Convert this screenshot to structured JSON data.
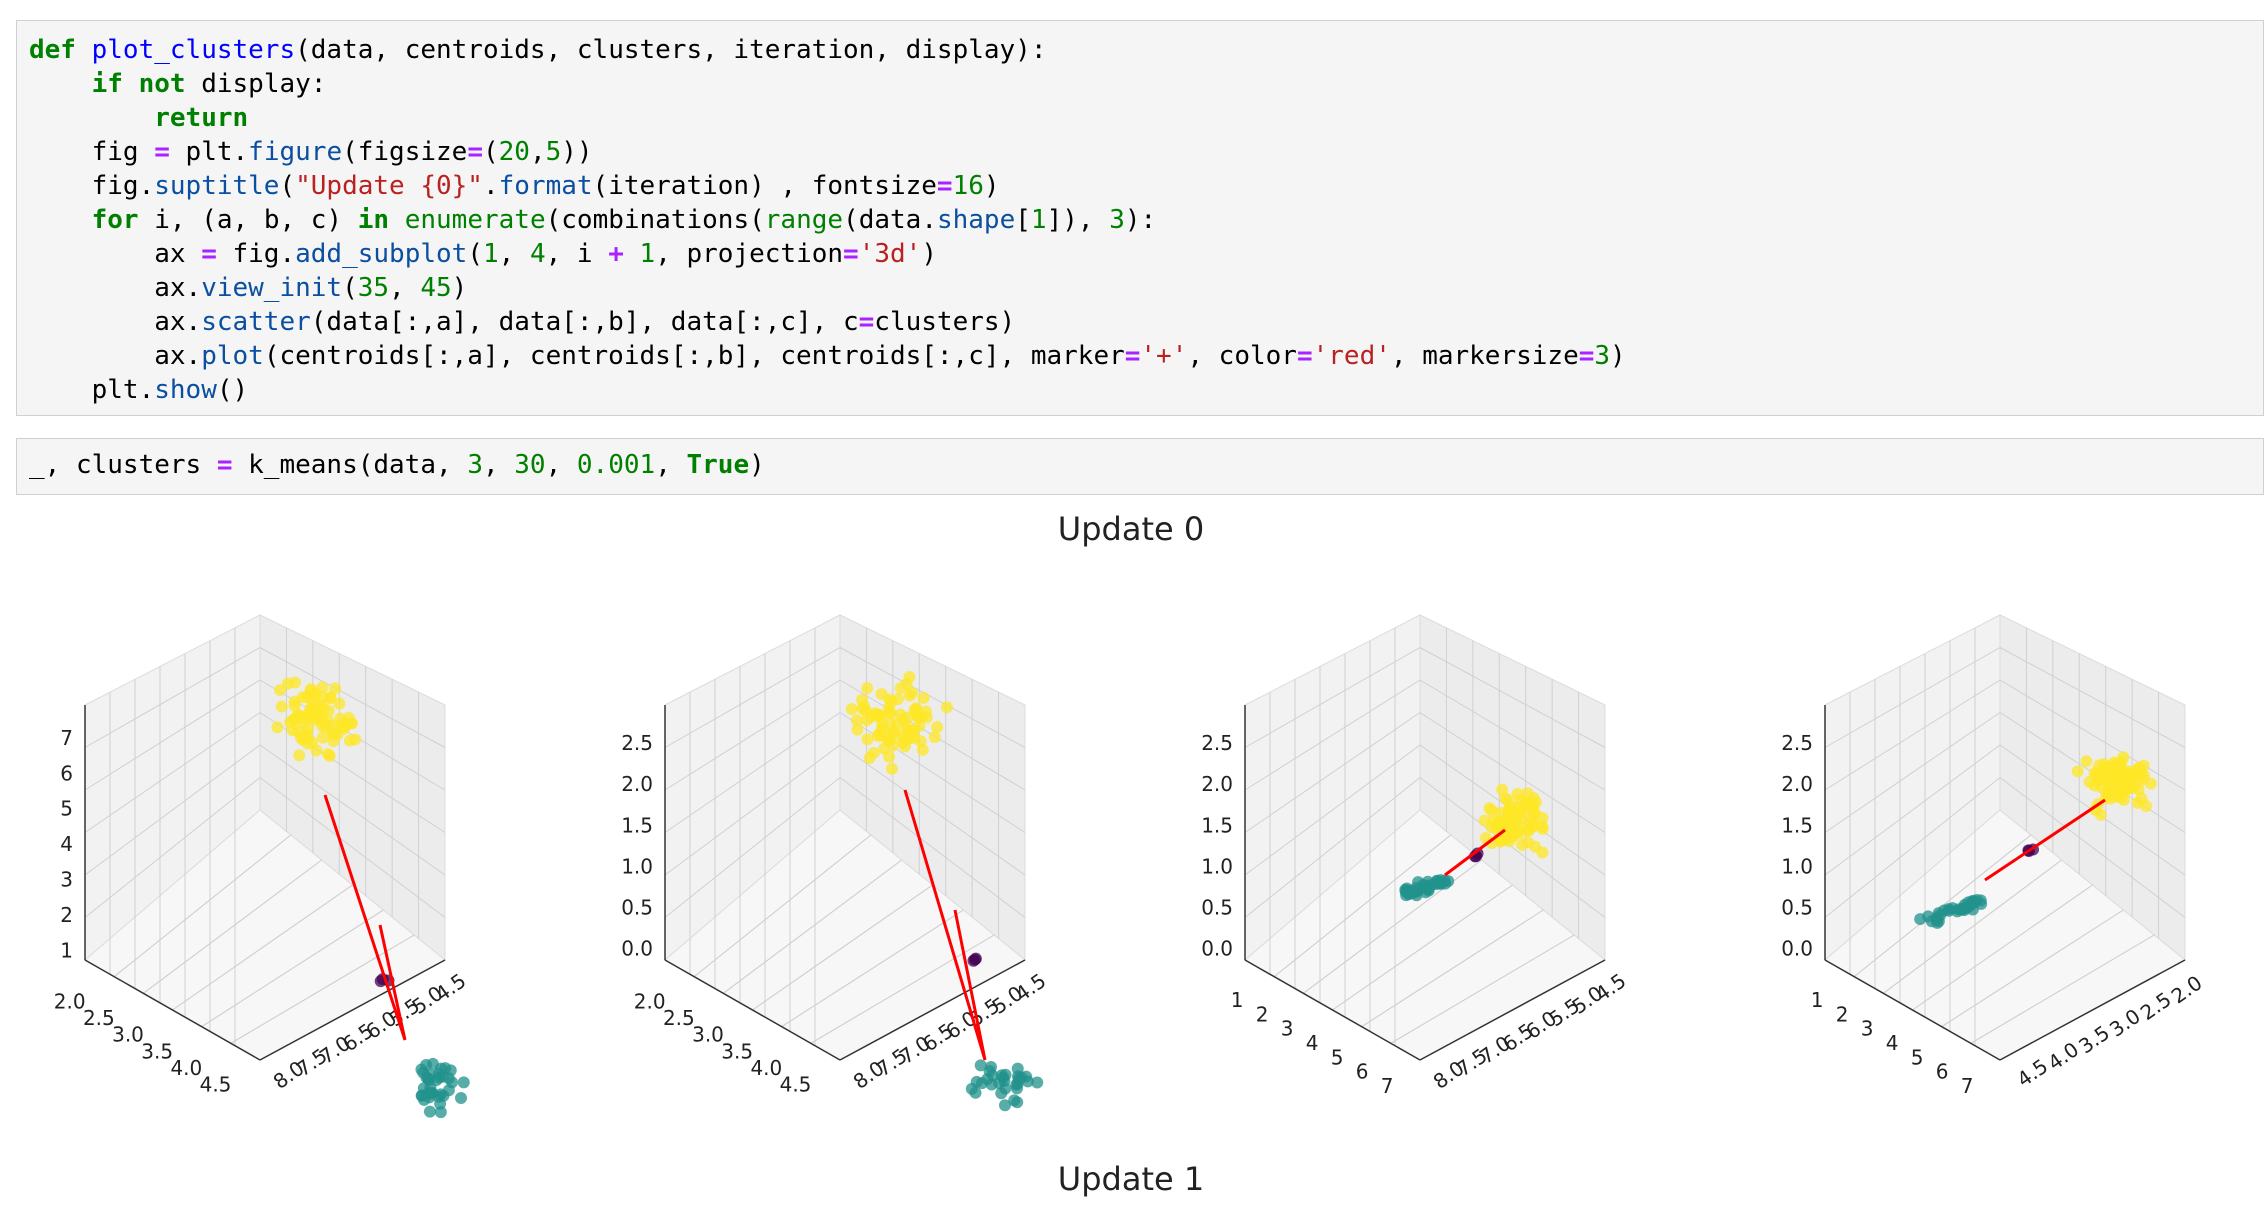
{
  "code_cell_1": {
    "lines": [
      [
        [
          "k",
          "def"
        ],
        [
          "t",
          " "
        ],
        [
          "f",
          "plot_clusters"
        ],
        [
          "t",
          "(data, centroids, clusters, iteration, display):"
        ]
      ],
      [
        [
          "t",
          "    "
        ],
        [
          "k",
          "if"
        ],
        [
          "t",
          " "
        ],
        [
          "k",
          "not"
        ],
        [
          "t",
          " display:"
        ]
      ],
      [
        [
          "t",
          "        "
        ],
        [
          "k",
          "return"
        ]
      ],
      [
        [
          "t",
          "    fig "
        ],
        [
          "o",
          "="
        ],
        [
          "t",
          " plt."
        ],
        [
          "a",
          "figure"
        ],
        [
          "t",
          "(figsize"
        ],
        [
          "o",
          "="
        ],
        [
          "t",
          "("
        ],
        [
          "n",
          "20"
        ],
        [
          "t",
          ","
        ],
        [
          "n",
          "5"
        ],
        [
          "t",
          "))"
        ]
      ],
      [
        [
          "t",
          "    fig."
        ],
        [
          "a",
          "suptitle"
        ],
        [
          "t",
          "("
        ],
        [
          "s",
          "\"Update {0}\""
        ],
        [
          "t",
          "."
        ],
        [
          "a",
          "format"
        ],
        [
          "t",
          "(iteration) , fontsize"
        ],
        [
          "o",
          "="
        ],
        [
          "n",
          "16"
        ],
        [
          "t",
          ")"
        ]
      ],
      [
        [
          "t",
          "    "
        ],
        [
          "k",
          "for"
        ],
        [
          "t",
          " i, (a, b, c) "
        ],
        [
          "k",
          "in"
        ],
        [
          "t",
          " "
        ],
        [
          "b",
          "enumerate"
        ],
        [
          "t",
          "(combinations("
        ],
        [
          "b",
          "range"
        ],
        [
          "t",
          "(data."
        ],
        [
          "a",
          "shape"
        ],
        [
          "t",
          "["
        ],
        [
          "n",
          "1"
        ],
        [
          "t",
          "]), "
        ],
        [
          "n",
          "3"
        ],
        [
          "t",
          "):"
        ]
      ],
      [
        [
          "t",
          "        ax "
        ],
        [
          "o",
          "="
        ],
        [
          "t",
          " fig."
        ],
        [
          "a",
          "add_subplot"
        ],
        [
          "t",
          "("
        ],
        [
          "n",
          "1"
        ],
        [
          "t",
          ", "
        ],
        [
          "n",
          "4"
        ],
        [
          "t",
          ", i "
        ],
        [
          "o",
          "+"
        ],
        [
          "t",
          " "
        ],
        [
          "n",
          "1"
        ],
        [
          "t",
          ", projection"
        ],
        [
          "o",
          "="
        ],
        [
          "s",
          "'3d'"
        ],
        [
          "t",
          ")"
        ]
      ],
      [
        [
          "t",
          "        ax."
        ],
        [
          "a",
          "view_init"
        ],
        [
          "t",
          "("
        ],
        [
          "n",
          "35"
        ],
        [
          "t",
          ", "
        ],
        [
          "n",
          "45"
        ],
        [
          "t",
          ")"
        ]
      ],
      [
        [
          "t",
          "        ax."
        ],
        [
          "a",
          "scatter"
        ],
        [
          "t",
          "(data[:,a], data[:,b], data[:,c], c"
        ],
        [
          "o",
          "="
        ],
        [
          "t",
          "clusters)"
        ]
      ],
      [
        [
          "t",
          "        ax."
        ],
        [
          "a",
          "plot"
        ],
        [
          "t",
          "(centroids[:,a], centroids[:,b], centroids[:,c], marker"
        ],
        [
          "o",
          "="
        ],
        [
          "s",
          "'+'"
        ],
        [
          "t",
          ", color"
        ],
        [
          "o",
          "="
        ],
        [
          "s",
          "'red'"
        ],
        [
          "t",
          ", markersize"
        ],
        [
          "o",
          "="
        ],
        [
          "n",
          "3"
        ],
        [
          "t",
          ")"
        ]
      ],
      [
        [
          "t",
          "    plt."
        ],
        [
          "a",
          "show"
        ],
        [
          "t",
          "()"
        ]
      ]
    ]
  },
  "code_cell_2": {
    "lines": [
      [
        [
          "t",
          "_, clusters "
        ],
        [
          "o",
          "="
        ],
        [
          "t",
          " k_means(data, "
        ],
        [
          "n",
          "3"
        ],
        [
          "t",
          ", "
        ],
        [
          "n",
          "30"
        ],
        [
          "t",
          ", "
        ],
        [
          "n",
          "0.001"
        ],
        [
          "t",
          ", "
        ],
        [
          "k",
          "True"
        ],
        [
          "t",
          ")"
        ]
      ]
    ]
  },
  "output": {
    "update0_title": "Update 0",
    "update1_title": "Update 1"
  },
  "colors": {
    "yellow": "#fde725",
    "teal": "#21918c",
    "purple": "#440154",
    "centroid_line": "#ff0000"
  },
  "chart_data": [
    {
      "type": "scatter",
      "projection": "3d",
      "z_ticks": [
        "1",
        "2",
        "3",
        "4",
        "5",
        "6",
        "7"
      ],
      "x_ticks": [
        "2.0",
        "2.5",
        "3.0",
        "3.5",
        "4.0",
        "4.5"
      ],
      "y_ticks": [
        "4.5",
        "5.0",
        "5.5",
        "6.0",
        "6.5",
        "7.0",
        "7.5",
        "8.0"
      ],
      "series": [
        {
          "color": "yellow",
          "count": 75
        },
        {
          "color": "teal",
          "count": 35
        },
        {
          "color": "purple",
          "count": 3
        }
      ]
    },
    {
      "type": "scatter",
      "projection": "3d",
      "z_ticks": [
        "0.0",
        "0.5",
        "1.0",
        "1.5",
        "2.0",
        "2.5"
      ],
      "x_ticks": [
        "2.0",
        "2.5",
        "3.0",
        "3.5",
        "4.0",
        "4.5"
      ],
      "y_ticks": [
        "4.5",
        "5.0",
        "5.5",
        "6.0",
        "6.5",
        "7.0",
        "7.5",
        "8.0"
      ],
      "series": [
        {
          "color": "yellow",
          "count": 75
        },
        {
          "color": "teal",
          "count": 30
        },
        {
          "color": "purple",
          "count": 3
        }
      ]
    },
    {
      "type": "scatter",
      "projection": "3d",
      "z_ticks": [
        "0.0",
        "0.5",
        "1.0",
        "1.5",
        "2.0",
        "2.5"
      ],
      "x_ticks": [
        "1",
        "2",
        "3",
        "4",
        "5",
        "6",
        "7"
      ],
      "y_ticks": [
        "4.5",
        "5.0",
        "5.5",
        "6.0",
        "6.5",
        "7.0",
        "7.5",
        "8.0"
      ],
      "series": [
        {
          "color": "yellow",
          "count": 80
        },
        {
          "color": "teal",
          "count": 35
        },
        {
          "color": "purple",
          "count": 3
        }
      ]
    },
    {
      "type": "scatter",
      "projection": "3d",
      "z_ticks": [
        "0.0",
        "0.5",
        "1.0",
        "1.5",
        "2.0",
        "2.5"
      ],
      "x_ticks": [
        "1",
        "2",
        "3",
        "4",
        "5",
        "6",
        "7"
      ],
      "y_ticks": [
        "2.0",
        "2.5",
        "3.0",
        "3.5",
        "4.0",
        "4.5"
      ],
      "series": [
        {
          "color": "yellow",
          "count": 75
        },
        {
          "color": "teal",
          "count": 30
        },
        {
          "color": "purple",
          "count": 3
        }
      ]
    }
  ]
}
